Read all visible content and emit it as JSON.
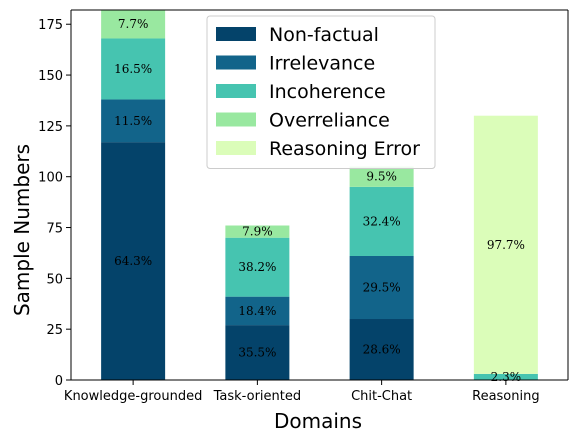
{
  "chart_data": {
    "type": "bar",
    "stacked": true,
    "title": "",
    "xlabel": "Domains",
    "ylabel": "Sample Numbers",
    "ylim": [
      0,
      182
    ],
    "yticks": [
      0,
      25,
      50,
      75,
      100,
      125,
      150,
      175
    ],
    "categories": [
      "Knowledge-grounded",
      "Task-oriented",
      "Chit-Chat",
      "Reasoning"
    ],
    "legend_position": "top-center",
    "grid": false,
    "series": [
      {
        "name": "Non-factual",
        "color": "#04436a",
        "values": [
          117,
          27,
          30,
          0
        ],
        "labels": [
          "64.3%",
          "35.5%",
          "28.6%",
          ""
        ]
      },
      {
        "name": "Irrelevance",
        "color": "#12648a",
        "values": [
          21,
          14,
          31,
          0
        ],
        "labels": [
          "11.5%",
          "18.4%",
          "29.5%",
          ""
        ]
      },
      {
        "name": "Incoherence",
        "color": "#46c4b0",
        "values": [
          30,
          29,
          34,
          3
        ],
        "labels": [
          "16.5%",
          "38.2%",
          "32.4%",
          "2.3%"
        ]
      },
      {
        "name": "Overreliance",
        "color": "#99e8a0",
        "values": [
          14,
          6,
          10,
          0
        ],
        "labels": [
          "7.7%",
          "7.9%",
          "9.5%",
          ""
        ]
      },
      {
        "name": "Reasoning Error",
        "color": "#dbfdb9",
        "values": [
          0,
          0,
          0,
          127
        ],
        "labels": [
          "",
          "",
          "",
          "97.7%"
        ]
      }
    ]
  }
}
